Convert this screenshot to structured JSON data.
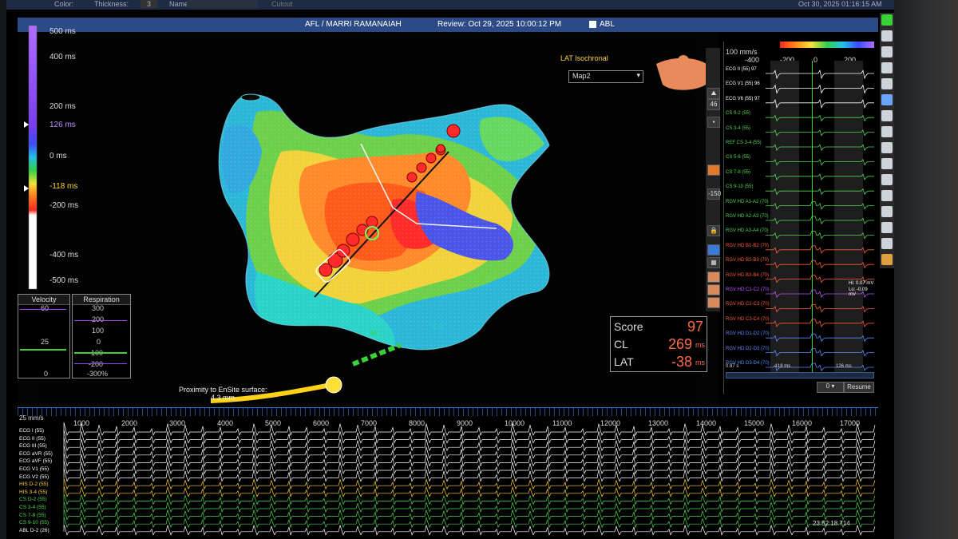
{
  "topbar": {
    "color_label": "Color:",
    "thickness_label": "Thickness:",
    "thickness_value": "3",
    "name_label": "Name:",
    "cutout_label": "Cutout",
    "datetime": "Oct 30, 2025 01:16:15 AM"
  },
  "titlebar": {
    "case": "AFL / MARRI RAMANAIAH",
    "review": "Review: Oct 29, 2025 10:00:12 PM",
    "abl_label": "ABL"
  },
  "scale": {
    "top": "500 ms",
    "l400": "400 ms",
    "l200": "200 ms",
    "l126": "126 ms",
    "l0": "0 ms",
    "l118": "-118 ms",
    "l200n": "-200 ms",
    "l400n": "-400 ms",
    "bottom": "-500 ms"
  },
  "velocity": {
    "title": "Velocity",
    "v_top": "60",
    "v_mid": "25",
    "v_bottom": "0"
  },
  "respiration": {
    "title": "Respiration",
    "r1": "300",
    "r2": "200",
    "r3": "100",
    "r4": "0",
    "r5": "-100",
    "r6": "-200",
    "r7": "-300%"
  },
  "map": {
    "selected": "Map2",
    "mode": "LAT Isochronal",
    "label_mam": "M...",
    "label_cs": "CS",
    "proximity": "Proximity to EnSite surface:",
    "proximity_value": "4.3 mm"
  },
  "score": {
    "score_label": "Score",
    "score_value": "97",
    "cl_label": "CL",
    "cl_value": "269",
    "cl_unit": "ms",
    "lat_label": "LAT",
    "lat_value": "-38",
    "lat_unit": "ms"
  },
  "tools": {
    "t46": "46",
    "t150": "-150"
  },
  "egm": {
    "speed": "100 mm/s",
    "axis": [
      "-400",
      "-200",
      "0",
      "200"
    ],
    "window_left": "-118 ms",
    "window_right": "126 ms",
    "hi_label": "Hi: 0.07 mV",
    "lo_label": "Lo: -0.09 mV",
    "bottom_left": "0.87 s",
    "bottom_mid": "-118 ms",
    "bottom_right": "126 ms",
    "resume": "Resume",
    "dropdown": "0",
    "channels": [
      {
        "name": "ECG II (55) 97",
        "color": "#ffffff"
      },
      {
        "name": "ECG V1 (55) 96",
        "color": "#ffffff"
      },
      {
        "name": "ECG V6 (55) 97",
        "color": "#ffffff"
      },
      {
        "name": "CS 9-2 (55)",
        "color": "#53d653"
      },
      {
        "name": "CS 3-4 (55)",
        "color": "#53d653"
      },
      {
        "name": "REF CS 3-4 (55)",
        "color": "#53d653"
      },
      {
        "name": "CS 5-6 (55)",
        "color": "#53d653"
      },
      {
        "name": "CS 7-8 (55)",
        "color": "#53d653"
      },
      {
        "name": "CS 9-10 (55)",
        "color": "#53d653"
      },
      {
        "name": "RGV HD A1-A2 (70)",
        "color": "#53d653"
      },
      {
        "name": "RGV HD A2-A3 (70)",
        "color": "#53d653"
      },
      {
        "name": "RGV HD A3-A4 (70)",
        "color": "#53d653"
      },
      {
        "name": "RGV HD B1-B2 (70)",
        "color": "#ff5a3a"
      },
      {
        "name": "RGV HD B2-B3 (70)",
        "color": "#ff5a3a"
      },
      {
        "name": "RGV HD B3-B4 (70)",
        "color": "#ff5a3a"
      },
      {
        "name": "RGV HD C1-C2 (70)",
        "color": "#c050ff"
      },
      {
        "name": "RGV HD C2-C3 (70)",
        "color": "#ff5a3a"
      },
      {
        "name": "RGV HD C3-C4 (70)",
        "color": "#ff5a3a"
      },
      {
        "name": "RGV HD D1-D2 (70)",
        "color": "#5a8cff"
      },
      {
        "name": "RGV HD D2-D3 (70)",
        "color": "#5a8cff"
      },
      {
        "name": "RGV HD D3-D4 (70)",
        "color": "#5a8cff"
      }
    ]
  },
  "bottom": {
    "speed": "25 mm/s",
    "ticks": [
      "1000",
      "2000",
      "3000",
      "4000",
      "5000",
      "6000",
      "7000",
      "8000",
      "9000",
      "10000",
      "11000",
      "12000",
      "13000",
      "14000",
      "15000",
      "16000",
      "17000"
    ],
    "time": "23:52:18.714",
    "channels": [
      {
        "name": "ECG I (55)",
        "color": "#ffffff"
      },
      {
        "name": "ECG II (55)",
        "color": "#ffffff"
      },
      {
        "name": "ECG III (55)",
        "color": "#ffffff"
      },
      {
        "name": "ECG aVR (55)",
        "color": "#ffffff"
      },
      {
        "name": "ECG aVF (55)",
        "color": "#ffffff"
      },
      {
        "name": "ECG V1 (55)",
        "color": "#ffffff"
      },
      {
        "name": "ECG V2 (55)",
        "color": "#ffffff"
      },
      {
        "name": "HIS D-2 (55)",
        "color": "#ffd23a"
      },
      {
        "name": "HIS 3-4 (55)",
        "color": "#ffd23a"
      },
      {
        "name": "CS D-2 (55)",
        "color": "#53d653"
      },
      {
        "name": "CS 3-4 (55)",
        "color": "#53d653"
      },
      {
        "name": "CS 7-8 (55)",
        "color": "#53d653"
      },
      {
        "name": "CS 9-10 (55)",
        "color": "#53d653"
      },
      {
        "name": "ABL D-2 (26)",
        "color": "#ffffff"
      }
    ]
  }
}
